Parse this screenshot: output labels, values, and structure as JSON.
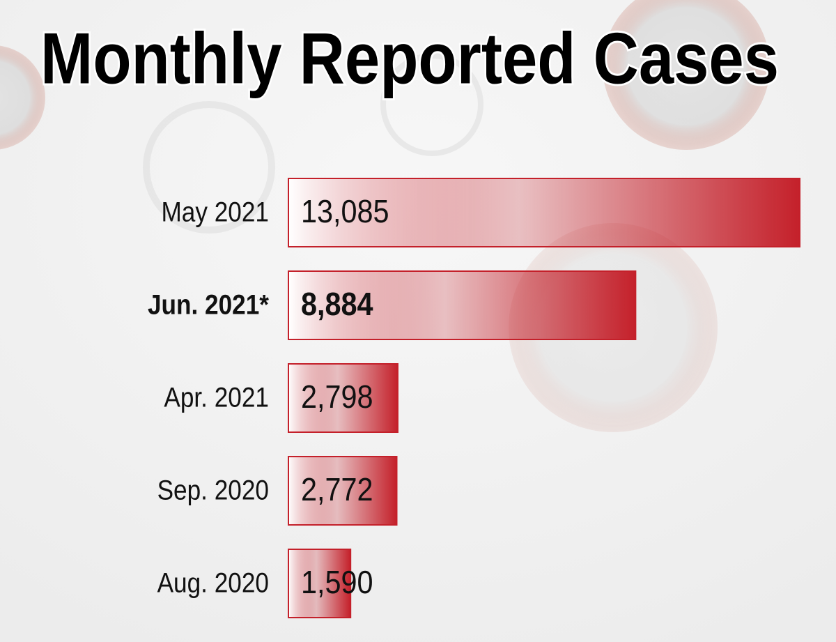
{
  "chart_data": {
    "type": "bar",
    "orientation": "horizontal",
    "title": "Monthly Reported Cases",
    "categories": [
      "May 2021",
      "Jun. 2021*",
      "Apr. 2021",
      "Sep. 2020",
      "Aug. 2020"
    ],
    "values": [
      13085,
      8884,
      2798,
      2772,
      1590
    ],
    "value_labels": [
      "13,085",
      "8,884",
      "2,798",
      "2,772",
      "1,590"
    ],
    "color": "#c4202a",
    "highlight_index": 1
  }
}
